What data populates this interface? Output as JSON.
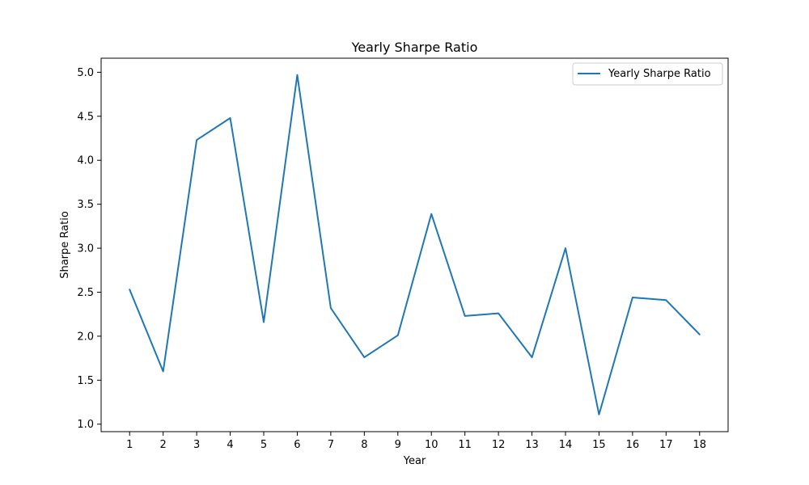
{
  "chart_data": {
    "type": "line",
    "title": "Yearly Sharpe Ratio",
    "xlabel": "Year",
    "ylabel": "Sharpe Ratio",
    "x": [
      1,
      2,
      3,
      4,
      5,
      6,
      7,
      8,
      9,
      10,
      11,
      12,
      13,
      14,
      15,
      16,
      17,
      18
    ],
    "xticks": [
      "1",
      "2",
      "3",
      "4",
      "5",
      "6",
      "7",
      "8",
      "9",
      "10",
      "11",
      "12",
      "13",
      "14",
      "15",
      "16",
      "17",
      "18"
    ],
    "yticks": [
      1.0,
      1.5,
      2.0,
      2.5,
      3.0,
      3.5,
      4.0,
      4.5,
      5.0
    ],
    "ytick_labels": [
      "1.0",
      "1.5",
      "2.0",
      "2.5",
      "3.0",
      "3.5",
      "4.0",
      "4.5",
      "5.0"
    ],
    "xlim": [
      0.15,
      18.85
    ],
    "ylim": [
      0.915,
      5.16
    ],
    "grid": false,
    "legend_position": "top-right",
    "series": [
      {
        "name": "Yearly Sharpe Ratio",
        "color": "#1f77b4",
        "values": [
          2.53,
          1.6,
          4.23,
          4.48,
          2.16,
          4.97,
          2.32,
          1.76,
          2.01,
          3.39,
          2.23,
          2.26,
          1.76,
          3.0,
          1.11,
          2.44,
          2.41,
          2.02
        ]
      }
    ]
  }
}
